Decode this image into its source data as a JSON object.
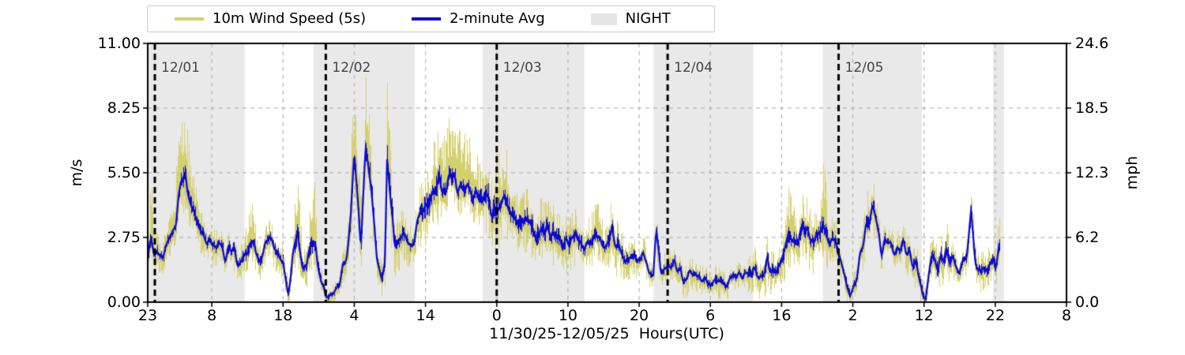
{
  "chart_data": {
    "type": "line",
    "title": "",
    "x_axis": {
      "label": "11/30/25-12/05/25  Hours(UTC)",
      "range_hours": [
        0,
        129
      ],
      "tick_hours": [
        0,
        9,
        19,
        29,
        39,
        49,
        59,
        69,
        79,
        89,
        99,
        109,
        119,
        129
      ],
      "tick_labels": [
        "23",
        "8",
        "18",
        "4",
        "14",
        "0",
        "10",
        "20",
        "6",
        "16",
        "2",
        "12",
        "22",
        "8"
      ]
    },
    "y_axis_left": {
      "label": "m/s",
      "range": [
        0,
        11
      ],
      "tick_values": [
        0,
        2.75,
        5.5,
        8.25,
        11
      ],
      "tick_labels": [
        "0.00",
        "2.75",
        "5.50",
        "8.25",
        "11.00"
      ],
      "grid_values": [
        2.75,
        5.5,
        8.25
      ]
    },
    "y_axis_right": {
      "label": "mph",
      "tick_labels": [
        "0.0",
        "6.2",
        "12.3",
        "18.5",
        "24.6"
      ]
    },
    "legend": {
      "items": [
        {
          "label": "10m Wind Speed (5s)",
          "color": "#d5d06e",
          "swatch": "line"
        },
        {
          "label": "2-minute Avg",
          "color": "#0b0bd6",
          "swatch": "line"
        },
        {
          "label": "NIGHT",
          "color": "#e4e4e4",
          "swatch": "patch"
        }
      ]
    },
    "day_markers": [
      {
        "hour": 1,
        "label": "12/01"
      },
      {
        "hour": 25,
        "label": "12/02"
      },
      {
        "hour": 49,
        "label": "12/03"
      },
      {
        "hour": 73,
        "label": "12/04"
      },
      {
        "hour": 97,
        "label": "12/05"
      }
    ],
    "night_bands_hours": [
      [
        0,
        13.6
      ],
      [
        23.3,
        37.5
      ],
      [
        47.0,
        61.3
      ],
      [
        71.0,
        85.0
      ],
      [
        94.8,
        108.7
      ],
      [
        118.7,
        120.2
      ]
    ],
    "data_end_hour": 119.6,
    "series": [
      {
        "name": "10m Wind Speed (5s)",
        "color": "#d5d06e",
        "style": "raw-envelope",
        "gust_bumps": [
          [
            0.5,
            1.5,
            0.4
          ],
          [
            4.8,
            2.0,
            1.6
          ],
          [
            14.5,
            1.2,
            0.6
          ],
          [
            21,
            1.8,
            0.5
          ],
          [
            23.2,
            1.8,
            0.5
          ],
          [
            29,
            2.2,
            0.9
          ],
          [
            30.6,
            1.5,
            0.6
          ],
          [
            33.7,
            1.5,
            0.35
          ],
          [
            42.5,
            1.2,
            2.2
          ],
          [
            45,
            1.0,
            1.5
          ],
          [
            50,
            1.0,
            1.2
          ],
          [
            63,
            0.7,
            0.8
          ],
          [
            90,
            0.6,
            0.9
          ],
          [
            95,
            1.5,
            0.5
          ],
          [
            101.5,
            0.5,
            0.8
          ],
          [
            110,
            0.4,
            0.5
          ],
          [
            115.6,
            0.4,
            0.3
          ],
          [
            119.3,
            0.4,
            0.4
          ]
        ],
        "max_value": 9.65
      },
      {
        "name": "2-minute Avg",
        "color": "#0b0bd6",
        "style": "solid",
        "keyframes": [
          [
            0,
            1.9
          ],
          [
            0.4,
            2.7
          ],
          [
            1,
            2.1
          ],
          [
            2,
            2.0
          ],
          [
            3,
            2.6
          ],
          [
            4,
            3.6
          ],
          [
            4.7,
            5.2
          ],
          [
            5.3,
            5.4
          ],
          [
            6,
            4.3
          ],
          [
            7,
            3.3
          ],
          [
            8,
            2.8
          ],
          [
            9,
            2.3
          ],
          [
            10,
            2.5
          ],
          [
            11,
            2.0
          ],
          [
            12,
            2.2
          ],
          [
            13,
            1.6
          ],
          [
            14,
            2.0
          ],
          [
            15,
            2.5
          ],
          [
            16,
            1.8
          ],
          [
            17,
            2.8
          ],
          [
            18,
            2.4
          ],
          [
            19,
            1.9
          ],
          [
            19.7,
            0.3
          ],
          [
            20.3,
            1.8
          ],
          [
            21,
            3.0
          ],
          [
            21.7,
            1.6
          ],
          [
            22.3,
            1.5
          ],
          [
            23,
            2.6
          ],
          [
            23.6,
            2.2
          ],
          [
            24,
            1.6
          ],
          [
            24.5,
            0.8
          ],
          [
            25,
            0.2
          ],
          [
            26,
            0.3
          ],
          [
            26.8,
            0.7
          ],
          [
            27.5,
            1.6
          ],
          [
            28,
            2.2
          ],
          [
            28.5,
            3.8
          ],
          [
            29,
            6.4
          ],
          [
            29.9,
            2.6
          ],
          [
            30.6,
            6.4
          ],
          [
            31.4,
            4.6
          ],
          [
            32.2,
            1.8
          ],
          [
            32.8,
            1.1
          ],
          [
            33.3,
            2.0
          ],
          [
            33.6,
            6.3
          ],
          [
            34,
            4.4
          ],
          [
            34.6,
            2.7
          ],
          [
            35.2,
            2.5
          ],
          [
            36,
            3.1
          ],
          [
            37,
            2.3
          ],
          [
            38,
            3.6
          ],
          [
            39,
            4.3
          ],
          [
            40,
            4.6
          ],
          [
            41,
            5.1
          ],
          [
            42,
            4.7
          ],
          [
            42.5,
            5.5
          ],
          [
            43,
            5.2
          ],
          [
            44,
            4.6
          ],
          [
            45,
            4.9
          ],
          [
            46,
            4.4
          ],
          [
            47,
            4.6
          ],
          [
            48,
            4.1
          ],
          [
            49,
            3.6
          ],
          [
            50,
            4.3
          ],
          [
            51,
            3.9
          ],
          [
            52,
            3.5
          ],
          [
            53,
            3.7
          ],
          [
            54,
            3.1
          ],
          [
            55,
            2.9
          ],
          [
            56,
            3.3
          ],
          [
            57,
            2.7
          ],
          [
            58,
            2.5
          ],
          [
            59,
            2.7
          ],
          [
            60,
            2.9
          ],
          [
            61,
            2.3
          ],
          [
            62,
            2.7
          ],
          [
            63,
            2.9
          ],
          [
            64,
            2.5
          ],
          [
            65,
            2.9
          ],
          [
            66,
            2.3
          ],
          [
            67,
            1.9
          ],
          [
            68,
            1.7
          ],
          [
            69,
            2.0
          ],
          [
            70,
            1.6
          ],
          [
            71,
            1.4
          ],
          [
            71.4,
            3.0
          ],
          [
            72,
            1.5
          ],
          [
            73,
            1.3
          ],
          [
            74,
            1.5
          ],
          [
            75,
            1.1
          ],
          [
            76,
            1.2
          ],
          [
            77,
            1.0
          ],
          [
            78,
            1.1
          ],
          [
            79,
            0.9
          ],
          [
            80,
            0.8
          ],
          [
            81,
            0.7
          ],
          [
            82,
            0.9
          ],
          [
            83,
            1.3
          ],
          [
            84,
            1.1
          ],
          [
            85,
            1.4
          ],
          [
            86,
            1.2
          ],
          [
            87,
            1.6
          ],
          [
            88,
            1.3
          ],
          [
            89,
            1.9
          ],
          [
            90,
            3.2
          ],
          [
            91,
            2.6
          ],
          [
            92,
            3.3
          ],
          [
            93,
            2.9
          ],
          [
            94,
            2.8
          ],
          [
            95,
            3.0
          ],
          [
            96,
            2.4
          ],
          [
            97,
            2.2
          ],
          [
            98,
            1.0
          ],
          [
            98.6,
            0.25
          ],
          [
            99.3,
            0.7
          ],
          [
            100,
            2.1
          ],
          [
            101,
            3.3
          ],
          [
            101.8,
            3.9
          ],
          [
            102.5,
            3.0
          ],
          [
            103,
            2.3
          ],
          [
            104,
            2.5
          ],
          [
            105,
            2.1
          ],
          [
            106,
            2.4
          ],
          [
            107,
            1.9
          ],
          [
            108,
            1.4
          ],
          [
            108.8,
            0.3
          ],
          [
            109.2,
            0.15
          ],
          [
            109.6,
            1.0
          ],
          [
            110,
            1.9
          ],
          [
            111,
            1.6
          ],
          [
            112,
            2.0
          ],
          [
            113,
            1.7
          ],
          [
            114,
            1.5
          ],
          [
            115,
            1.9
          ],
          [
            115.6,
            3.8
          ],
          [
            116.2,
            1.6
          ],
          [
            117,
            1.4
          ],
          [
            118,
            1.7
          ],
          [
            119,
            1.6
          ],
          [
            119.6,
            2.8
          ]
        ]
      }
    ],
    "colors": {
      "background": "#ffffff",
      "night": "#e9e9e9",
      "grid": "#b4b4b4",
      "day_line": "#000000",
      "date_label": "#444444",
      "axis": "#000000"
    },
    "layout_hints": {
      "grid": "dashed",
      "legend_position": "top-left-outside",
      "night_band_label": "NIGHT"
    }
  }
}
